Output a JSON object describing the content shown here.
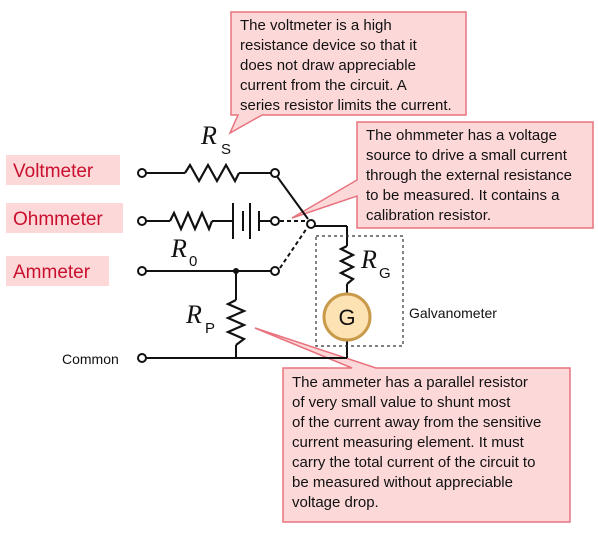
{
  "diagram": {
    "labels": {
      "voltmeter": "Voltmeter",
      "ohmmeter": "Ohmmeter",
      "ammeter": "Ammeter",
      "common": "Common",
      "galvanometer": "Galvanometer",
      "galvanometer_symbol": "G"
    },
    "symbols": {
      "rs": {
        "main": "R",
        "sub": "S"
      },
      "r0": {
        "main": "R",
        "sub": "0"
      },
      "rg": {
        "main": "R",
        "sub": "G"
      },
      "rp": {
        "main": "R",
        "sub": "P"
      }
    },
    "callouts": {
      "voltmeter": [
        "The voltmeter is a high",
        "resistance device so that it",
        "does not draw appreciable",
        "current from the circuit. A",
        "series resistor limits the current."
      ],
      "ohmmeter": [
        "The ohmmeter has a voltage",
        "source to drive a small current",
        "through the external resistance",
        "to be measured.  It contains a",
        "calibration resistor."
      ],
      "ammeter": [
        "The ammeter has a parallel resistor",
        "of very small value to shunt most",
        "of the current away from the sensitive",
        "current measuring element.  It must",
        "carry the total current of the circuit to",
        "be measured without appreciable",
        "voltage drop."
      ]
    },
    "colors": {
      "callout_fill": "#fcd8d9",
      "callout_border": "#e8737e",
      "mode_label_text": "#c8102e",
      "galvanometer_fill": "#fde3b3",
      "galvanometer_ring": "#c99a4a"
    }
  }
}
